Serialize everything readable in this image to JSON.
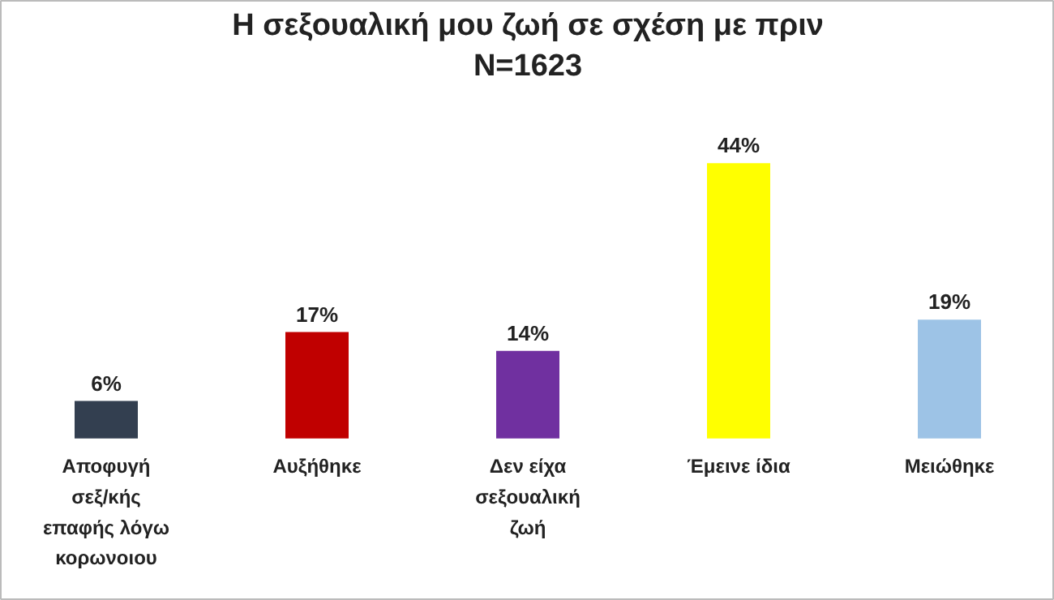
{
  "chart_data": {
    "type": "bar",
    "title": "Η σεξουαλική μου ζωή σε σχέση με πριν",
    "subtitle": "N=1623",
    "categories": [
      "Αποφυγή σεξ/κής επαφής λόγω κορωνοιου",
      "Αυξήθηκε",
      "Δεν είχα σεξουαλική ζωή",
      "Έμεινε ίδια",
      "Μειώθηκε"
    ],
    "values": [
      6,
      17,
      14,
      44,
      19
    ],
    "colors": [
      "#333f50",
      "#c00000",
      "#7030a0",
      "#ffff00",
      "#9dc3e6"
    ],
    "value_labels": [
      "6%",
      "17%",
      "14%",
      "44%",
      "19%"
    ],
    "grid": false
  }
}
